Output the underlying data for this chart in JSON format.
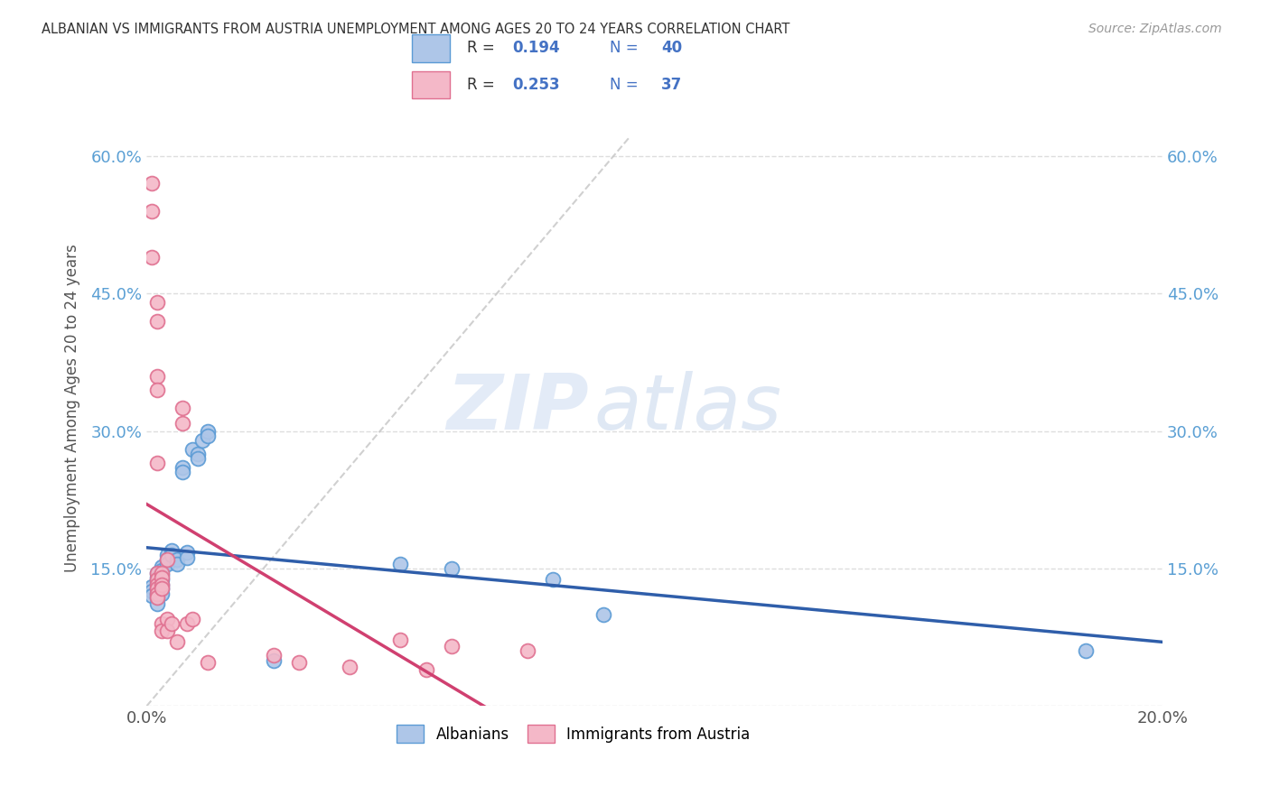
{
  "title": "ALBANIAN VS IMMIGRANTS FROM AUSTRIA UNEMPLOYMENT AMONG AGES 20 TO 24 YEARS CORRELATION CHART",
  "source": "Source: ZipAtlas.com",
  "ylabel": "Unemployment Among Ages 20 to 24 years",
  "xlim": [
    0.0,
    0.2
  ],
  "ylim": [
    0.0,
    0.65
  ],
  "xticks": [
    0.0,
    0.05,
    0.1,
    0.15,
    0.2
  ],
  "xtick_labels": [
    "0.0%",
    "",
    "",
    "",
    "20.0%"
  ],
  "yticks": [
    0.0,
    0.15,
    0.3,
    0.45,
    0.6
  ],
  "ytick_labels": [
    "",
    "15.0%",
    "30.0%",
    "45.0%",
    "60.0%"
  ],
  "albanian_color": "#aec6e8",
  "albanian_edge": "#5b9bd5",
  "austria_color": "#f4b8c8",
  "austria_edge": "#e07090",
  "trend_blue": "#2f5eaa",
  "trend_pink": "#d04070",
  "trend_gray_dash": "#c8c8c8",
  "R_albanian": 0.194,
  "N_albanian": 40,
  "R_austria": 0.253,
  "N_austria": 37,
  "albanian_points": [
    [
      0.001,
      0.13
    ],
    [
      0.001,
      0.125
    ],
    [
      0.001,
      0.12
    ],
    [
      0.002,
      0.145
    ],
    [
      0.002,
      0.14
    ],
    [
      0.002,
      0.135
    ],
    [
      0.002,
      0.128
    ],
    [
      0.002,
      0.122
    ],
    [
      0.002,
      0.118
    ],
    [
      0.002,
      0.112
    ],
    [
      0.003,
      0.152
    ],
    [
      0.003,
      0.148
    ],
    [
      0.003,
      0.143
    ],
    [
      0.003,
      0.138
    ],
    [
      0.003,
      0.132
    ],
    [
      0.003,
      0.128
    ],
    [
      0.003,
      0.122
    ],
    [
      0.004,
      0.165
    ],
    [
      0.004,
      0.16
    ],
    [
      0.004,
      0.155
    ],
    [
      0.005,
      0.17
    ],
    [
      0.005,
      0.165
    ],
    [
      0.006,
      0.16
    ],
    [
      0.006,
      0.155
    ],
    [
      0.007,
      0.26
    ],
    [
      0.007,
      0.255
    ],
    [
      0.008,
      0.168
    ],
    [
      0.008,
      0.162
    ],
    [
      0.009,
      0.28
    ],
    [
      0.01,
      0.275
    ],
    [
      0.01,
      0.27
    ],
    [
      0.011,
      0.29
    ],
    [
      0.012,
      0.3
    ],
    [
      0.012,
      0.295
    ],
    [
      0.05,
      0.155
    ],
    [
      0.06,
      0.15
    ],
    [
      0.08,
      0.138
    ],
    [
      0.09,
      0.1
    ],
    [
      0.185,
      0.06
    ],
    [
      0.025,
      0.05
    ]
  ],
  "austria_points": [
    [
      0.001,
      0.57
    ],
    [
      0.001,
      0.54
    ],
    [
      0.001,
      0.49
    ],
    [
      0.002,
      0.44
    ],
    [
      0.002,
      0.42
    ],
    [
      0.002,
      0.36
    ],
    [
      0.002,
      0.345
    ],
    [
      0.002,
      0.265
    ],
    [
      0.002,
      0.145
    ],
    [
      0.002,
      0.138
    ],
    [
      0.002,
      0.132
    ],
    [
      0.002,
      0.128
    ],
    [
      0.002,
      0.122
    ],
    [
      0.002,
      0.118
    ],
    [
      0.003,
      0.145
    ],
    [
      0.003,
      0.14
    ],
    [
      0.003,
      0.132
    ],
    [
      0.003,
      0.128
    ],
    [
      0.003,
      0.09
    ],
    [
      0.003,
      0.082
    ],
    [
      0.004,
      0.16
    ],
    [
      0.004,
      0.095
    ],
    [
      0.004,
      0.082
    ],
    [
      0.005,
      0.09
    ],
    [
      0.006,
      0.07
    ],
    [
      0.007,
      0.325
    ],
    [
      0.007,
      0.308
    ],
    [
      0.008,
      0.09
    ],
    [
      0.009,
      0.095
    ],
    [
      0.025,
      0.055
    ],
    [
      0.05,
      0.072
    ],
    [
      0.06,
      0.065
    ],
    [
      0.075,
      0.06
    ],
    [
      0.012,
      0.048
    ],
    [
      0.03,
      0.048
    ],
    [
      0.04,
      0.043
    ],
    [
      0.055,
      0.04
    ]
  ],
  "watermark_zip": "ZIP",
  "watermark_atlas": "atlas",
  "background_color": "#ffffff",
  "grid_color": "#dddddd"
}
